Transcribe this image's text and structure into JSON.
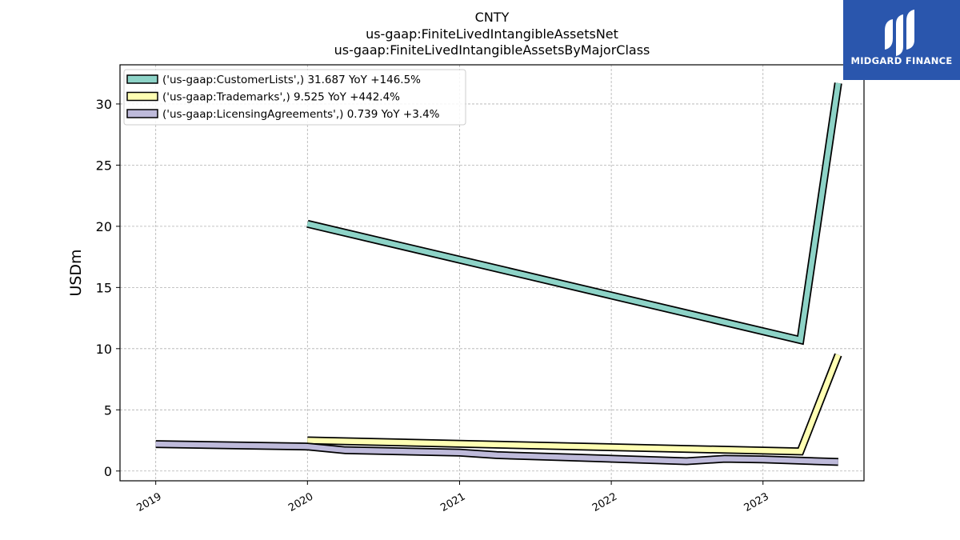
{
  "chart_data": {
    "type": "line",
    "title_lines": [
      "CNTY",
      "us-gaap:FiniteLivedIntangibleAssetsNet",
      "us-gaap:FiniteLivedIntangibleAssetsByMajorClass"
    ],
    "ylabel": "USDm",
    "xlabel": "",
    "ylim": [
      -0.8,
      33.2
    ],
    "xlim": [
      "2018-10-07",
      "2023-09-01"
    ],
    "y_ticks": [
      0,
      5,
      10,
      15,
      20,
      25,
      30
    ],
    "x_ticks": [
      "2019",
      "2020",
      "2021",
      "2022",
      "2023"
    ],
    "grid": true,
    "legend_position": "top-left",
    "series": [
      {
        "name": "('us-gaap:CustomerLists',) 31.687 YoY +146.5%",
        "color": "#8dd3c7",
        "x": [
          "2020-01-01",
          "2023-04-01",
          "2023-07-01"
        ],
        "y": [
          20.2,
          10.7,
          31.7
        ]
      },
      {
        "name": "('us-gaap:Trademarks',) 9.525 YoY +442.4%",
        "color": "#ffffb3",
        "x": [
          "2020-01-01",
          "2023-04-01",
          "2023-07-01"
        ],
        "y": [
          2.5,
          1.6,
          9.5
        ]
      },
      {
        "name": "('us-gaap:LicensingAgreements',) 0.739 YoY +3.4%",
        "color": "#bebada",
        "x": [
          "2019-01-01",
          "2020-01-01",
          "2020-04-01",
          "2021-01-01",
          "2021-04-01",
          "2021-10-01",
          "2022-07-01",
          "2022-10-01",
          "2023-01-01",
          "2023-07-01"
        ],
        "y": [
          2.2,
          2.0,
          1.7,
          1.5,
          1.3,
          1.1,
          0.8,
          1.0,
          0.95,
          0.74
        ]
      }
    ]
  },
  "logo": {
    "name": "MIDGARD FINANCE"
  }
}
